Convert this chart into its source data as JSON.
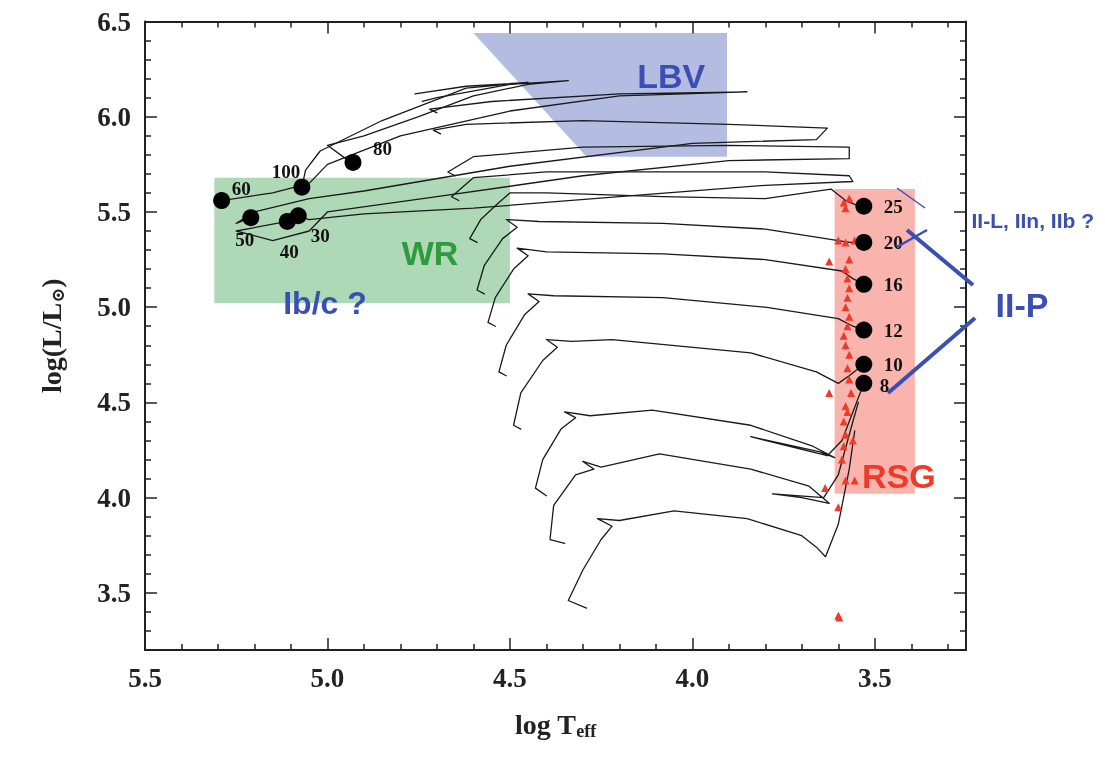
{
  "chart_data": {
    "type": "line",
    "xlabel": "log T$_{eff}$",
    "ylabel": "log(L/L$_{⊙}$)",
    "xlim": [
      5.5,
      3.25
    ],
    "ylim": [
      3.2,
      6.5
    ],
    "xticks": [
      {
        "value": 5.5,
        "label": "5.5"
      },
      {
        "value": 5.4,
        "label": null
      },
      {
        "value": 5.3,
        "label": null
      },
      {
        "value": 5.2,
        "label": null
      },
      {
        "value": 5.1,
        "label": null
      },
      {
        "value": 5,
        "label": "5.0"
      },
      {
        "value": 4.9,
        "label": null
      },
      {
        "value": 4.8,
        "label": null
      },
      {
        "value": 4.7,
        "label": null
      },
      {
        "value": 4.6,
        "label": null
      },
      {
        "value": 4.5,
        "label": "4.5"
      },
      {
        "value": 4.4,
        "label": null
      },
      {
        "value": 4.3,
        "label": null
      },
      {
        "value": 4.2,
        "label": null
      },
      {
        "value": 4.1,
        "label": null
      },
      {
        "value": 4,
        "label": "4.0"
      },
      {
        "value": 3.9,
        "label": null
      },
      {
        "value": 3.8,
        "label": null
      },
      {
        "value": 3.7,
        "label": null
      },
      {
        "value": 3.6,
        "label": null
      },
      {
        "value": 3.5,
        "label": "3.5"
      },
      {
        "value": 3.4,
        "label": null
      },
      {
        "value": 3.3,
        "label": null
      }
    ],
    "yticks": [
      {
        "value": 3.3,
        "label": null
      },
      {
        "value": 3.4,
        "label": null
      },
      {
        "value": 3.5,
        "label": "3.5"
      },
      {
        "value": 3.6,
        "label": null
      },
      {
        "value": 3.7,
        "label": null
      },
      {
        "value": 3.8,
        "label": null
      },
      {
        "value": 3.9,
        "label": null
      },
      {
        "value": 4,
        "label": "4.0"
      },
      {
        "value": 4.1,
        "label": null
      },
      {
        "value": 4.2,
        "label": null
      },
      {
        "value": 4.3,
        "label": null
      },
      {
        "value": 4.4,
        "label": null
      },
      {
        "value": 4.5,
        "label": "4.5"
      },
      {
        "value": 4.6,
        "label": null
      },
      {
        "value": 4.7,
        "label": null
      },
      {
        "value": 4.8,
        "label": null
      },
      {
        "value": 4.9,
        "label": null
      },
      {
        "value": 5,
        "label": "5.0"
      },
      {
        "value": 5.1,
        "label": null
      },
      {
        "value": 5.2,
        "label": null
      },
      {
        "value": 5.3,
        "label": null
      },
      {
        "value": 5.4,
        "label": null
      },
      {
        "value": 5.5,
        "label": "5.5"
      },
      {
        "value": 5.6,
        "label": null
      },
      {
        "value": 5.7,
        "label": null
      },
      {
        "value": 5.8,
        "label": null
      },
      {
        "value": 5.9,
        "label": null
      },
      {
        "value": 6,
        "label": "6.0"
      },
      {
        "value": 6.1,
        "label": null
      },
      {
        "value": 6.2,
        "label": null
      },
      {
        "value": 6.3,
        "label": null
      },
      {
        "value": 6.4,
        "label": null
      },
      {
        "value": 6.5,
        "label": "6.5"
      }
    ],
    "grid": false,
    "annotations": [
      "Ib/c ?",
      "II-L, IIn, IIb ?",
      "II-P",
      {
        "text": "25",
        "x": 3.53,
        "y": 5.53
      },
      {
        "text": "20",
        "x": 3.53,
        "y": 5.34
      },
      {
        "text": "16",
        "x": 3.53,
        "y": 5.12
      },
      {
        "text": "12",
        "x": 3.53,
        "y": 4.88
      },
      {
        "text": "10",
        "x": 3.53,
        "y": 4.7
      },
      {
        "text": "8",
        "x": 3.53,
        "y": 4.6
      },
      {
        "text": "80",
        "x": 4.93,
        "y": 5.76
      },
      {
        "text": "100",
        "x": 5.07,
        "y": 5.63
      },
      {
        "text": "60",
        "x": 5.29,
        "y": 5.56
      },
      {
        "text": "50",
        "x": 5.21,
        "y": 5.47
      },
      {
        "text": "40",
        "x": 5.11,
        "y": 5.45
      },
      {
        "text": "30",
        "x": 5.08,
        "y": 5.48
      }
    ],
    "series": [
      {
        "type": "area",
        "name": "LBV",
        "color": "#3b4fb3",
        "x": [
          4.6,
          3.905,
          3.905,
          4.29
        ],
        "values": [
          6.44,
          6.44,
          5.79,
          5.79
        ]
      },
      {
        "type": "area",
        "name": "WR",
        "color": "#2e9b3e",
        "x": [
          5.31,
          4.5,
          4.5,
          5.31
        ],
        "values": [
          5.68,
          5.68,
          5.02,
          5.02
        ]
      },
      {
        "type": "area",
        "name": "RSG",
        "color": "#ee3a2a",
        "x": [
          3.61,
          3.39,
          3.39,
          3.61
        ],
        "values": [
          5.62,
          5.62,
          4.02,
          4.02
        ]
      },
      {
        "marker": "none",
        "color": "#1a1a1a",
        "x": [
          4.29,
          4.34,
          4.3,
          4.25,
          4.22,
          4.26,
          4.2,
          4.05,
          3.85,
          3.7,
          3.66,
          3.635,
          3.6,
          3.57,
          3.555
        ],
        "values": [
          3.42,
          3.46,
          3.62,
          3.78,
          3.85,
          3.89,
          3.88,
          3.93,
          3.89,
          3.8,
          3.74,
          3.69,
          3.86,
          4.15,
          4.35
        ]
      },
      {
        "marker": "none",
        "color": "#1a1a1a",
        "x": [
          4.35,
          4.39,
          4.38,
          4.32,
          4.27,
          4.3,
          4.25,
          4.09,
          3.84,
          3.68,
          3.625,
          3.7,
          3.78,
          3.64,
          3.6,
          3.56,
          3.545
        ],
        "values": [
          3.76,
          3.78,
          3.96,
          4.12,
          4.15,
          4.19,
          4.16,
          4.23,
          4.15,
          4.06,
          3.97,
          4.0,
          4.02,
          4.0,
          4.12,
          4.4,
          4.5
        ]
      },
      {
        "marker": "none",
        "color": "#1a1a1a",
        "x": [
          4.4,
          4.43,
          4.41,
          4.36,
          4.32,
          4.35,
          4.28,
          4.11,
          3.84,
          3.67,
          3.61,
          3.65,
          3.84,
          3.63,
          3.59,
          3.55,
          3.53
        ],
        "values": [
          4.01,
          4.05,
          4.2,
          4.36,
          4.42,
          4.45,
          4.43,
          4.46,
          4.38,
          4.27,
          4.21,
          4.24,
          4.32,
          4.22,
          4.3,
          4.5,
          4.6
        ]
      },
      {
        "marker": "none",
        "color": "#1a1a1a",
        "x": [
          4.47,
          4.49,
          4.47,
          4.41,
          4.37,
          4.4,
          4.33,
          4.22,
          3.84,
          3.66,
          3.6,
          3.57,
          3.53
        ],
        "values": [
          4.36,
          4.38,
          4.55,
          4.72,
          4.79,
          4.83,
          4.82,
          4.83,
          4.76,
          4.66,
          4.6,
          4.64,
          4.7
        ]
      },
      {
        "marker": "none",
        "color": "#1a1a1a",
        "x": [
          4.51,
          4.53,
          4.51,
          4.46,
          4.42,
          4.45,
          4.38,
          4.08,
          3.8,
          3.6,
          3.56,
          3.53
        ],
        "values": [
          4.64,
          4.66,
          4.8,
          4.96,
          5.03,
          5.07,
          5.06,
          5.05,
          5.0,
          4.94,
          4.9,
          4.88
        ]
      },
      {
        "marker": "none",
        "color": "#1a1a1a",
        "x": [
          4.54,
          4.56,
          4.54,
          4.49,
          4.45,
          4.48,
          4.4,
          4.08,
          3.8,
          3.59,
          3.56,
          3.53
        ],
        "values": [
          4.9,
          4.92,
          5.05,
          5.2,
          5.27,
          5.31,
          5.29,
          5.28,
          5.25,
          5.19,
          5.15,
          5.12
        ]
      },
      {
        "marker": "none",
        "color": "#1a1a1a",
        "x": [
          4.57,
          4.59,
          4.57,
          4.52,
          4.48,
          4.51,
          4.42,
          4.08,
          3.8,
          3.6,
          3.57,
          3.53
        ],
        "values": [
          5.07,
          5.09,
          5.22,
          5.36,
          5.42,
          5.46,
          5.45,
          5.44,
          5.41,
          5.35,
          5.34,
          5.34
        ]
      },
      {
        "marker": "none",
        "color": "#1a1a1a",
        "x": [
          4.59,
          4.61,
          4.58,
          4.53,
          4.5,
          4.4,
          4.08,
          3.8,
          3.62,
          3.58,
          3.555,
          3.53
        ],
        "values": [
          5.34,
          5.36,
          5.46,
          5.55,
          5.6,
          5.6,
          5.58,
          5.57,
          5.62,
          5.56,
          5.54,
          5.53
        ]
      },
      {
        "marker": "none",
        "color": "#1a1a1a",
        "x": [
          4.64,
          4.66,
          4.6,
          4.4,
          4.1,
          3.8,
          3.57,
          3.56,
          3.8,
          4.2,
          4.6,
          4.9,
          5.05,
          5.08
        ],
        "values": [
          5.56,
          5.58,
          5.68,
          5.71,
          5.71,
          5.71,
          5.69,
          5.66,
          5.64,
          5.58,
          5.52,
          5.49,
          5.46,
          5.48
        ]
      },
      {
        "marker": "none",
        "color": "#1a1a1a",
        "x": [
          4.65,
          4.67,
          4.6,
          4.3,
          3.9,
          3.57,
          3.57,
          3.9,
          4.3,
          4.7,
          5.0,
          5.05,
          5.15,
          5.25,
          5.11
        ],
        "values": [
          5.69,
          5.71,
          5.79,
          5.84,
          5.85,
          5.84,
          5.78,
          5.77,
          5.69,
          5.58,
          5.5,
          5.4,
          5.35,
          5.4,
          5.45
        ]
      },
      {
        "marker": "none",
        "color": "#1a1a1a",
        "x": [
          4.69,
          4.71,
          4.62,
          4.3,
          3.9,
          3.63,
          3.66,
          4.0,
          4.5,
          4.9,
          5.05,
          5.2,
          5.25,
          5.21
        ],
        "values": [
          5.91,
          5.93,
          5.96,
          5.98,
          5.96,
          5.94,
          5.88,
          5.86,
          5.74,
          5.61,
          5.57,
          5.5,
          5.44,
          5.47
        ]
      },
      {
        "marker": "none",
        "color": "#1a1a1a",
        "x": [
          4.7,
          4.72,
          4.55,
          4.2,
          3.85,
          4.2,
          4.5,
          4.8,
          5.0,
          5.05,
          5.15,
          5.29
        ],
        "values": [
          6.02,
          6.04,
          6.08,
          6.12,
          6.13,
          6.11,
          6.03,
          5.9,
          5.75,
          5.65,
          5.6,
          5.56
        ]
      },
      {
        "marker": "none",
        "color": "#1a1a1a",
        "x": [
          4.74,
          4.7,
          4.5,
          4.34,
          4.45,
          4.6,
          4.75,
          4.9,
          5.0,
          4.95,
          4.93
        ],
        "values": [
          6.08,
          6.1,
          6.17,
          6.19,
          6.17,
          6.11,
          6.0,
          5.9,
          5.85,
          5.78,
          5.76
        ]
      },
      {
        "marker": "none",
        "color": "#1a1a1a",
        "x": [
          4.76,
          4.62,
          4.45,
          4.62,
          4.85,
          5.02,
          5.06,
          5.07
        ],
        "values": [
          6.12,
          6.16,
          6.18,
          6.15,
          5.98,
          5.82,
          5.72,
          5.63
        ]
      },
      {
        "type": "scatter",
        "marker": "triangle",
        "color": "#ee3a2a",
        "x": [
          3.6,
          3.597,
          3.636,
          3.6,
          3.555,
          3.58,
          3.59,
          3.585,
          3.58,
          3.585,
          3.575,
          3.58,
          3.625,
          3.57,
          3.575,
          3.57,
          3.58,
          3.585,
          3.575,
          3.57,
          3.58,
          3.575,
          3.57,
          3.575,
          3.58,
          3.57,
          3.625,
          3.58,
          3.6,
          3.555,
          3.58,
          3.585,
          3.57,
          3.56,
          3.565
        ],
        "values": [
          3.38,
          3.37,
          4.05,
          3.95,
          4.09,
          4.09,
          4.2,
          4.27,
          4.33,
          4.4,
          4.45,
          4.48,
          4.55,
          4.62,
          4.68,
          4.75,
          4.8,
          4.85,
          4.9,
          4.95,
          5.0,
          5.05,
          5.1,
          5.15,
          5.2,
          5.25,
          5.24,
          5.34,
          5.35,
          5.35,
          5.52,
          5.55,
          5.57,
          4.3,
          4.55
        ]
      },
      {
        "type": "scatter",
        "marker": "circle",
        "color": "#000000",
        "x": [
          3.53,
          3.53,
          3.53,
          3.53,
          3.53,
          3.53,
          4.93,
          5.07,
          5.29,
          5.21,
          5.11,
          5.08
        ],
        "values": [
          5.53,
          5.34,
          5.12,
          4.88,
          4.7,
          4.6,
          5.76,
          5.63,
          5.56,
          5.47,
          5.45,
          5.48
        ]
      }
    ]
  }
}
